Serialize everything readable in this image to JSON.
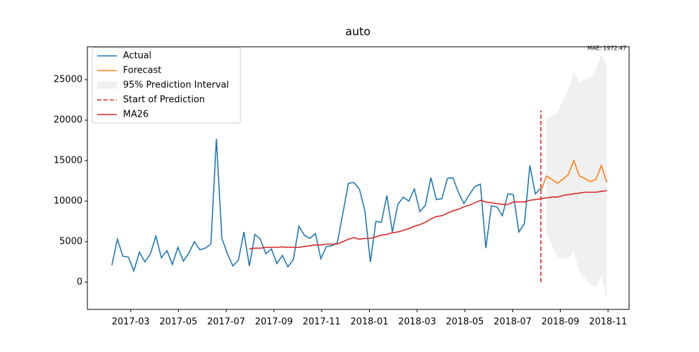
{
  "chart_data": {
    "type": "line",
    "title": "auto",
    "annotation": "MAE: 1972.47",
    "x": [
      2017.101,
      2017.1202,
      2017.1394,
      2017.1586,
      2017.1778,
      2017.197,
      2017.2162,
      2017.2354,
      2017.2546,
      2017.2738,
      2017.293,
      2017.3122,
      2017.3314,
      2017.3506,
      2017.3698,
      2017.389,
      2017.4082,
      2017.4274,
      2017.4466,
      2017.4658,
      2017.485,
      2017.5042,
      2017.5234,
      2017.5426,
      2017.5618,
      2017.581,
      2017.6002,
      2017.6194,
      2017.6386,
      2017.6578,
      2017.677,
      2017.6962,
      2017.7154,
      2017.7346,
      2017.7538,
      2017.773,
      2017.7922,
      2017.8114,
      2017.8306,
      2017.8498,
      2017.869,
      2017.8882,
      2017.9074,
      2017.9266,
      2017.9458,
      2017.965,
      2017.9842,
      2018.0034,
      2018.0226,
      2018.0418,
      2018.061,
      2018.0802,
      2018.0994,
      2018.1186,
      2018.1378,
      2018.157,
      2018.1762,
      2018.1954,
      2018.2146,
      2018.2338,
      2018.253,
      2018.2722,
      2018.2914,
      2018.3106,
      2018.3298,
      2018.349,
      2018.3682,
      2018.3874,
      2018.4066,
      2018.4258,
      2018.445,
      2018.4642,
      2018.4834,
      2018.5026,
      2018.5218,
      2018.541,
      2018.5602,
      2018.5794,
      2018.5986,
      2018.6178,
      2018.637,
      2018.6562,
      2018.6754,
      2018.6946,
      2018.7138,
      2018.733,
      2018.7522,
      2018.7714,
      2018.7906,
      2018.8098,
      2018.829
    ],
    "interval": {
      "name": "95% Prediction Interval",
      "color": "#d3d3d3",
      "upper": [
        null,
        null,
        null,
        null,
        null,
        null,
        null,
        null,
        null,
        null,
        null,
        null,
        null,
        null,
        null,
        null,
        null,
        null,
        null,
        null,
        null,
        null,
        null,
        null,
        null,
        null,
        null,
        null,
        null,
        null,
        null,
        null,
        null,
        null,
        null,
        null,
        null,
        null,
        null,
        null,
        null,
        null,
        null,
        null,
        null,
        null,
        null,
        null,
        null,
        null,
        null,
        null,
        null,
        null,
        null,
        null,
        null,
        null,
        null,
        null,
        null,
        null,
        null,
        null,
        null,
        null,
        null,
        null,
        null,
        null,
        null,
        null,
        null,
        null,
        null,
        null,
        null,
        null,
        null,
        20200,
        20500,
        21000,
        22400,
        23800,
        26000,
        24700,
        25000,
        25300,
        26200,
        28200,
        26500
      ],
      "lower": [
        null,
        null,
        null,
        null,
        null,
        null,
        null,
        null,
        null,
        null,
        null,
        null,
        null,
        null,
        null,
        null,
        null,
        null,
        null,
        null,
        null,
        null,
        null,
        null,
        null,
        null,
        null,
        null,
        null,
        null,
        null,
        null,
        null,
        null,
        null,
        null,
        null,
        null,
        null,
        null,
        null,
        null,
        null,
        null,
        null,
        null,
        null,
        null,
        null,
        null,
        null,
        null,
        null,
        null,
        null,
        null,
        null,
        null,
        null,
        null,
        null,
        null,
        null,
        null,
        null,
        null,
        null,
        null,
        null,
        null,
        null,
        null,
        null,
        null,
        null,
        null,
        null,
        null,
        null,
        6000,
        4600,
        3100,
        2900,
        2900,
        3800,
        1300,
        500,
        -300,
        -600,
        800,
        -2000
      ]
    },
    "series": [
      {
        "name": "Actual",
        "color": "#1f77b4",
        "values": [
          2100,
          5300,
          3200,
          3100,
          1400,
          3700,
          2500,
          3500,
          5700,
          3000,
          3900,
          2200,
          4300,
          2600,
          3600,
          5000,
          4000,
          4200,
          4700,
          17700,
          5400,
          3500,
          2000,
          2700,
          6200,
          2000,
          5900,
          5300,
          3500,
          4100,
          2300,
          3300,
          1900,
          2800,
          6900,
          5800,
          5400,
          6000,
          2900,
          4400,
          4500,
          4900,
          8500,
          12200,
          12300,
          11500,
          8800,
          2500,
          7500,
          7400,
          10700,
          6200,
          9600,
          10500,
          10000,
          11500,
          8700,
          9500,
          12900,
          10200,
          10300,
          12800,
          12900,
          11100,
          9700,
          10800,
          11800,
          12100,
          4200,
          9400,
          9300,
          8200,
          10900,
          10800,
          6200,
          7200,
          14400,
          10900,
          11600,
          null,
          null,
          null,
          null,
          null,
          null,
          null,
          null,
          null,
          null,
          null,
          null
        ]
      },
      {
        "name": "Forecast",
        "color": "#ff7f0e",
        "values": [
          null,
          null,
          null,
          null,
          null,
          null,
          null,
          null,
          null,
          null,
          null,
          null,
          null,
          null,
          null,
          null,
          null,
          null,
          null,
          null,
          null,
          null,
          null,
          null,
          null,
          null,
          null,
          null,
          null,
          null,
          null,
          null,
          null,
          null,
          null,
          null,
          null,
          null,
          null,
          null,
          null,
          null,
          null,
          null,
          null,
          null,
          null,
          null,
          null,
          null,
          null,
          null,
          null,
          null,
          null,
          null,
          null,
          null,
          null,
          null,
          null,
          null,
          null,
          null,
          null,
          null,
          null,
          null,
          null,
          null,
          null,
          null,
          null,
          null,
          null,
          null,
          null,
          null,
          11200,
          13100,
          12700,
          12200,
          12700,
          13300,
          15000,
          13100,
          12800,
          12400,
          12700,
          14400,
          12300
        ]
      },
      {
        "name": "MA26",
        "color": "#d62728",
        "values": [
          null,
          null,
          null,
          null,
          null,
          null,
          null,
          null,
          null,
          null,
          null,
          null,
          null,
          null,
          null,
          null,
          null,
          null,
          null,
          null,
          null,
          null,
          null,
          null,
          null,
          4100,
          4200,
          4200,
          4300,
          4300,
          4300,
          4350,
          4300,
          4300,
          4300,
          4400,
          4500,
          4600,
          4600,
          4700,
          4700,
          4700,
          5000,
          5300,
          5500,
          5300,
          5400,
          5400,
          5600,
          5800,
          5900,
          6100,
          6200,
          6400,
          6600,
          6900,
          7100,
          7400,
          7800,
          8100,
          8200,
          8500,
          8800,
          9000,
          9300,
          9500,
          9800,
          10100,
          9900,
          9800,
          9700,
          9600,
          9600,
          9900,
          9900,
          9900,
          10100,
          10200,
          10300,
          10400,
          10500,
          10500,
          10700,
          10800,
          10900,
          11000,
          11100,
          11100,
          11100,
          11200,
          11300
        ]
      }
    ],
    "vline": {
      "name": "Start of Prediction",
      "color": "#d62728",
      "x": 2018.5986,
      "y": [
        0,
        21200
      ]
    },
    "xlim": [
      2017.0154,
      2018.9066
    ],
    "xticks": [
      {
        "value": 2017.1667,
        "label": "2017-03"
      },
      {
        "value": 2017.3333,
        "label": "2017-05"
      },
      {
        "value": 2017.5,
        "label": "2017-07"
      },
      {
        "value": 2017.6667,
        "label": "2017-09"
      },
      {
        "value": 2017.8333,
        "label": "2017-11"
      },
      {
        "value": 2018.0,
        "label": "2018-01"
      },
      {
        "value": 2018.1667,
        "label": "2018-03"
      },
      {
        "value": 2018.3333,
        "label": "2018-05"
      },
      {
        "value": 2018.5,
        "label": "2018-07"
      },
      {
        "value": 2018.6667,
        "label": "2018-09"
      },
      {
        "value": 2018.8333,
        "label": "2018-11"
      }
    ],
    "ylim": [
      -3360,
      29050
    ],
    "yticks": [
      0,
      5000,
      10000,
      15000,
      20000,
      25000
    ],
    "legend": "upper left",
    "grid": false
  }
}
